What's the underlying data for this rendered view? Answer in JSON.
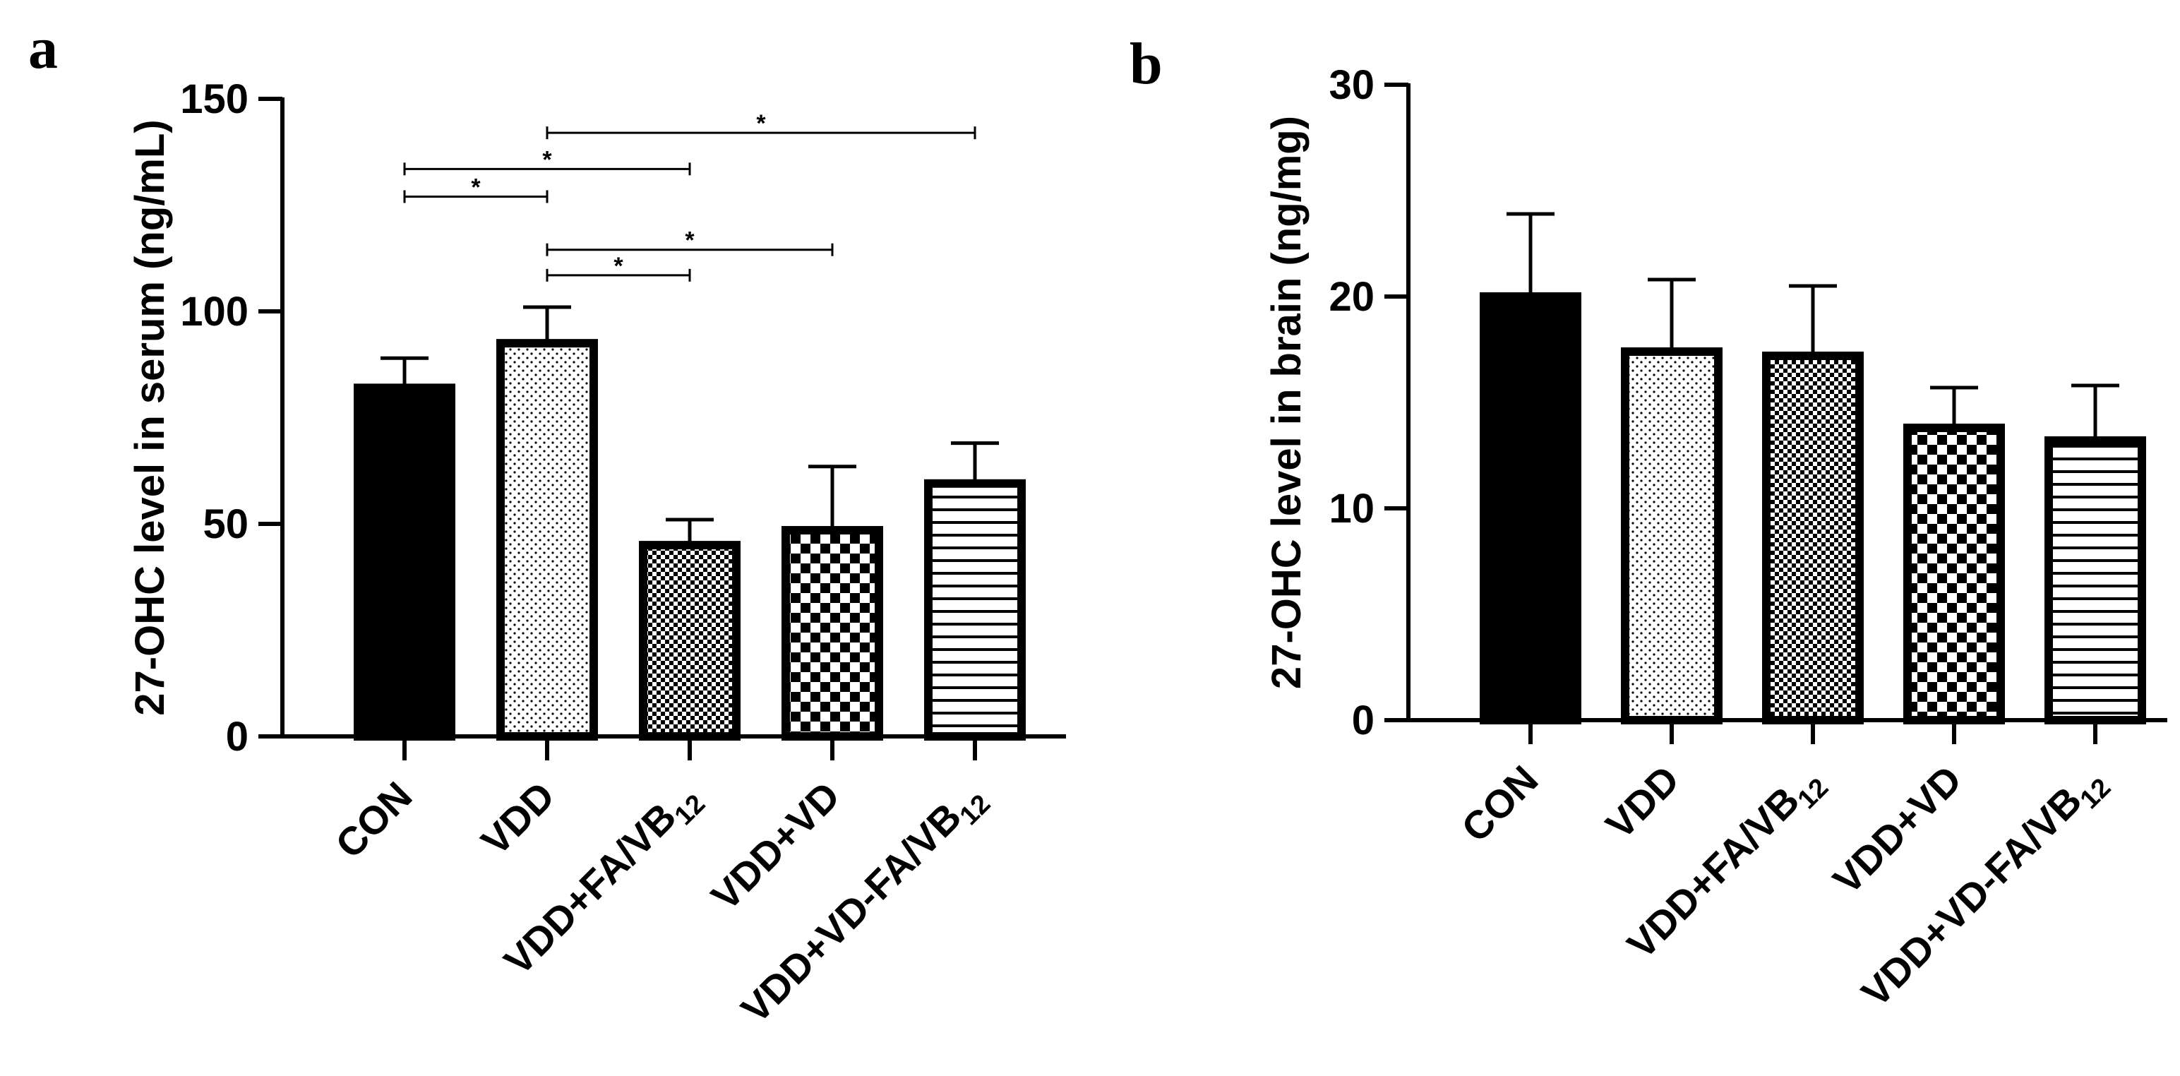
{
  "chart_data": [
    {
      "panel": "a",
      "type": "bar",
      "ylabel": "27-OHC level in serum (ng/mL)",
      "xlabel": "",
      "ylim": [
        0,
        150
      ],
      "yticks": [
        0,
        50,
        100,
        150
      ],
      "categories": [
        {
          "base": "CON",
          "sub": ""
        },
        {
          "base": "VDD",
          "sub": ""
        },
        {
          "base": "VDD+FA/VB",
          "sub": "12"
        },
        {
          "base": "VDD+VD",
          "sub": ""
        },
        {
          "base": "VDD+VD-FA/VB",
          "sub": "12"
        }
      ],
      "patterns": [
        "solid",
        "dots",
        "fine-checker",
        "checker",
        "hlines"
      ],
      "values": [
        82,
        92.5,
        45,
        48.5,
        59.5
      ],
      "errors": [
        7,
        8.5,
        6,
        15,
        9.5
      ],
      "significance": [
        {
          "from": 0,
          "to": 1,
          "y": 127,
          "label": "*"
        },
        {
          "from": 0,
          "to": 2,
          "y": 133.5,
          "label": "*"
        },
        {
          "from": 1,
          "to": 4,
          "y": 142,
          "label": "*"
        },
        {
          "from": 1,
          "to": 3,
          "y": 114.5,
          "label": "*"
        },
        {
          "from": 1,
          "to": 2,
          "y": 108.5,
          "label": "*"
        }
      ]
    },
    {
      "panel": "b",
      "type": "bar",
      "ylabel": "27-OHC level in brain (ng/mg)",
      "xlabel": "",
      "ylim": [
        0,
        30
      ],
      "yticks": [
        0,
        10,
        20,
        30
      ],
      "categories": [
        {
          "base": "CON",
          "sub": ""
        },
        {
          "base": "VDD",
          "sub": ""
        },
        {
          "base": "VDD+FA/VB",
          "sub": "12"
        },
        {
          "base": "VDD+VD",
          "sub": ""
        },
        {
          "base": "VDD+VD-FA/VB",
          "sub": "12"
        }
      ],
      "patterns": [
        "solid",
        "dots",
        "fine-checker",
        "checker",
        "hlines"
      ],
      "values": [
        20,
        17.4,
        17.2,
        13.8,
        13.2
      ],
      "errors": [
        3.9,
        3.4,
        3.3,
        1.9,
        2.6
      ],
      "significance": []
    }
  ]
}
